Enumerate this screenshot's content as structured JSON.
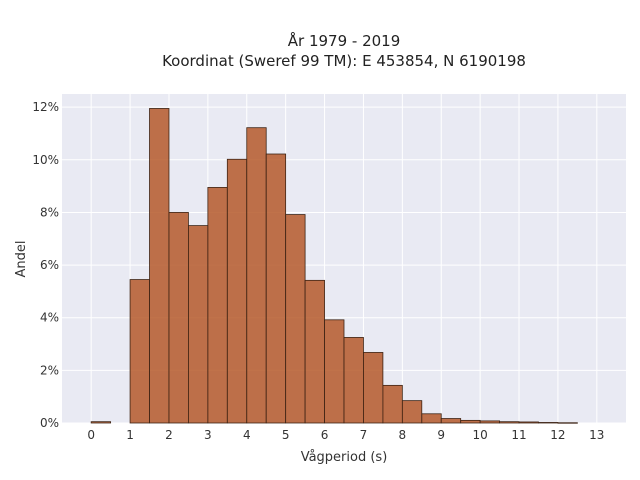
{
  "chart_data": {
    "type": "bar",
    "title_line1": "År 1979 - 2019",
    "title_line2": "Koordinat (Sweref 99 TM): E 453854, N 6190198",
    "xlabel": "Vågperiod (s)",
    "ylabel": "Andel",
    "x_ticks": [
      "0",
      "1",
      "2",
      "3",
      "4",
      "5",
      "6",
      "7",
      "8",
      "9",
      "10",
      "11",
      "12",
      "13"
    ],
    "x_tick_values": [
      0,
      1,
      2,
      3,
      4,
      5,
      6,
      7,
      8,
      9,
      10,
      11,
      12,
      13
    ],
    "y_ticks": [
      "0%",
      "2%",
      "4%",
      "6%",
      "8%",
      "10%",
      "12%"
    ],
    "y_tick_values": [
      0,
      2,
      4,
      6,
      8,
      10,
      12
    ],
    "xlim": [
      -0.75,
      13.75
    ],
    "ylim": [
      0,
      12.5
    ],
    "bin_width": 0.5,
    "bins": [
      {
        "start": 0.0,
        "value": 0.05
      },
      {
        "start": 1.0,
        "value": 5.45
      },
      {
        "start": 1.5,
        "value": 11.95
      },
      {
        "start": 2.0,
        "value": 8.0
      },
      {
        "start": 2.5,
        "value": 7.5
      },
      {
        "start": 3.0,
        "value": 8.95
      },
      {
        "start": 3.5,
        "value": 10.02
      },
      {
        "start": 4.0,
        "value": 11.22
      },
      {
        "start": 4.5,
        "value": 10.22
      },
      {
        "start": 5.0,
        "value": 7.92
      },
      {
        "start": 5.5,
        "value": 5.42
      },
      {
        "start": 6.0,
        "value": 3.92
      },
      {
        "start": 6.5,
        "value": 3.25
      },
      {
        "start": 7.0,
        "value": 2.68
      },
      {
        "start": 7.5,
        "value": 1.43
      },
      {
        "start": 8.0,
        "value": 0.85
      },
      {
        "start": 8.5,
        "value": 0.35
      },
      {
        "start": 9.0,
        "value": 0.17
      },
      {
        "start": 9.5,
        "value": 0.1
      },
      {
        "start": 10.0,
        "value": 0.08
      },
      {
        "start": 10.5,
        "value": 0.05
      },
      {
        "start": 11.0,
        "value": 0.04
      },
      {
        "start": 11.5,
        "value": 0.02
      },
      {
        "start": 12.0,
        "value": 0.01
      }
    ],
    "bar_color": "#b5592a",
    "bar_edge_color": "#3d2314",
    "plot_background": "#e9eaf3",
    "grid": true
  }
}
